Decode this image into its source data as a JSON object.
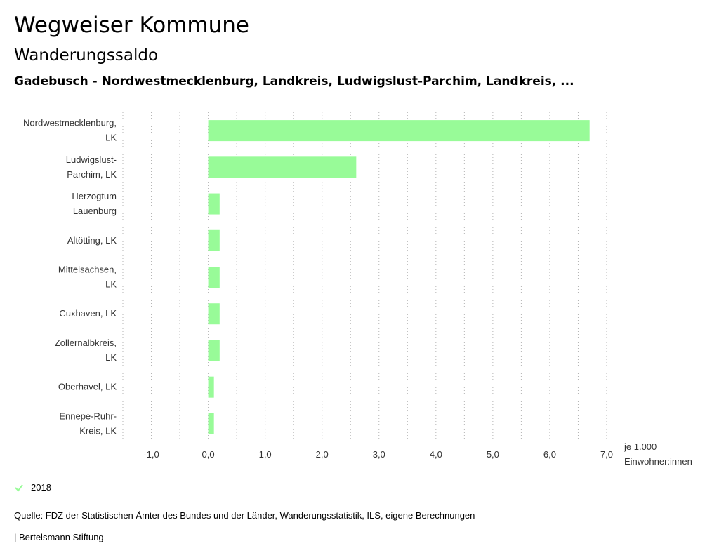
{
  "header": {
    "title": "Wegweiser Kommune",
    "subtitle": "Wanderungssaldo",
    "region": "Gadebusch - Nordwestmecklenburg, Landkreis, Ludwigslust-Parchim, Landkreis, ..."
  },
  "legend": {
    "label": "2018",
    "icon": "check-icon"
  },
  "footer": {
    "source": "Quelle: FDZ der Statistischen Ämter des Bundes und der Länder, Wanderungsstatistik, ILS, eigene Berechnungen",
    "brand": "| Bertelsmann Stiftung"
  },
  "colors": {
    "bar": "#98fb98",
    "grid": "#b3b3b3",
    "text": "#333333"
  },
  "chart_data": {
    "type": "bar",
    "orientation": "horizontal",
    "categories": [
      [
        "Nordwestmecklenburg,",
        "LK"
      ],
      [
        "Ludwigslust-",
        "Parchim, LK"
      ],
      [
        "Herzogtum",
        "Lauenburg"
      ],
      [
        "Altötting, LK"
      ],
      [
        "Mittelsachsen,",
        "LK"
      ],
      [
        "Cuxhaven, LK"
      ],
      [
        "Zollernalbkreis,",
        "LK"
      ],
      [
        "Oberhavel, LK"
      ],
      [
        "Ennepe-Ruhr-",
        "Kreis, LK"
      ]
    ],
    "series": [
      {
        "name": "2018",
        "values": [
          6.7,
          2.6,
          0.2,
          0.2,
          0.2,
          0.2,
          0.2,
          0.1,
          0.1
        ]
      }
    ],
    "xlim": [
      -1.5,
      7.0
    ],
    "xticks": [
      -1.0,
      0.0,
      1.0,
      2.0,
      3.0,
      4.0,
      5.0,
      6.0,
      7.0
    ],
    "tick_labels": [
      "-1,0",
      "0,0",
      "1,0",
      "2,0",
      "3,0",
      "4,0",
      "5,0",
      "6,0",
      "7,0"
    ],
    "unit_label": [
      "je 1.000",
      "Einwohner:innen"
    ],
    "grid": true
  }
}
